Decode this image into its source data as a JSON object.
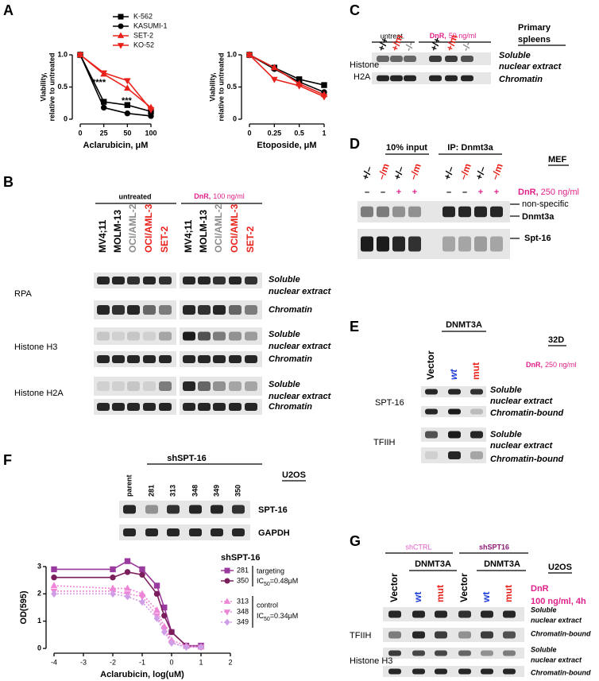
{
  "letters": [
    "A",
    "B",
    "C",
    "D",
    "E",
    "F",
    "G"
  ],
  "chart_data": [
    {
      "type": "line",
      "x_label": "Aclarubicin, μM",
      "y_label": [
        "Viability,",
        "relative to untreated"
      ],
      "categories": [
        "0",
        "25",
        "50",
        "100"
      ],
      "ylim": [
        0,
        1
      ],
      "yticks": [
        0,
        0.5,
        {
          "value": 1,
          "label": "1.0"
        }
      ],
      "annotations": [
        "****",
        "***"
      ],
      "series": [
        {
          "name": "K-562",
          "color": "#000000",
          "marker": "square",
          "values": [
            1,
            0.27,
            0.22,
            0.12
          ]
        },
        {
          "name": "KASUMI-1",
          "color": "#000000",
          "marker": "circle",
          "values": [
            1,
            0.18,
            0.09,
            0.05
          ]
        },
        {
          "name": "SET-2",
          "color": "#e8221b",
          "marker": "triangle",
          "values": [
            1,
            0.7,
            0.48,
            0.18
          ]
        },
        {
          "name": "KO-52",
          "color": "#e8221b",
          "marker": "triangle-down",
          "values": [
            1,
            0.72,
            0.6,
            0.15
          ]
        }
      ]
    },
    {
      "type": "line",
      "x_label": "Etoposide, μM",
      "y_label": [
        "Viability,",
        "relative to untreated"
      ],
      "categories": [
        "0",
        "0.25",
        "0.5",
        "1"
      ],
      "ylim": [
        0,
        1
      ],
      "yticks": [
        0,
        0.5,
        {
          "value": 1,
          "label": "1.0"
        }
      ],
      "series": [
        {
          "color": "#000000",
          "marker": "square",
          "values": [
            1,
            0.8,
            0.62,
            0.53
          ]
        },
        {
          "color": "#000000",
          "marker": "circle",
          "values": [
            1,
            0.78,
            0.58,
            0.42
          ]
        },
        {
          "color": "#e8221b",
          "marker": "triangle",
          "values": [
            1,
            0.8,
            0.55,
            0.38
          ]
        },
        {
          "color": "#e8221b",
          "marker": "triangle-down",
          "values": [
            1,
            0.62,
            0.52,
            0.35
          ]
        }
      ]
    },
    {
      "type": "line",
      "x_label": "Aclarubicin, log(uM)",
      "y_label": "OD(595)",
      "x": [
        -4,
        -2,
        -1.5,
        -1,
        -0.5,
        -0.25,
        0,
        0.5,
        1
      ],
      "xlim": [
        -4,
        2
      ],
      "xticks": [
        -4,
        -3,
        -2,
        -1,
        0,
        1,
        2
      ],
      "ylim": [
        0,
        3
      ],
      "yticks": [
        0,
        1,
        2,
        3
      ],
      "legend_title": "shSPT-16",
      "groups": [
        {
          "label": "targeting",
          "ic": "IC",
          "sub": "50",
          "value": "=0.48μM"
        },
        {
          "label": "control",
          "ic": "IC",
          "sub": "50",
          "value": "=0.34μM"
        }
      ],
      "series": [
        {
          "name": "281",
          "color": "#9b3a9e",
          "marker": "square",
          "line_style": "solid",
          "values": [
            2.9,
            2.9,
            3.2,
            2.9,
            2.3,
            1.5,
            0.6,
            0.1,
            0.1
          ]
        },
        {
          "name": "350",
          "color": "#7a1f5c",
          "marker": "circle",
          "line_style": "solid",
          "values": [
            2.6,
            2.6,
            2.8,
            2.7,
            2.0,
            1.2,
            0.6,
            0.1,
            0.05
          ]
        },
        {
          "name": "313",
          "color": "#ee86d8",
          "marker": "triangle",
          "line_style": "dotted",
          "values": [
            2.3,
            2.2,
            2.2,
            2.0,
            1.4,
            0.8,
            0.3,
            0.1,
            0.05
          ]
        },
        {
          "name": "348",
          "color": "#ee86d8",
          "marker": "triangle-down",
          "line_style": "dotted",
          "values": [
            2.1,
            2.1,
            2.0,
            1.9,
            1.2,
            0.7,
            0.2,
            0.05,
            0.05
          ]
        },
        {
          "name": "349",
          "color": "#cf9ee6",
          "marker": "diamond",
          "line_style": "dotted",
          "values": [
            2.0,
            2.0,
            1.9,
            1.7,
            1.1,
            0.6,
            0.2,
            0.05,
            0.05
          ]
        }
      ]
    }
  ],
  "panel_b": {
    "untreated": "untreated",
    "dnr": "DnR,",
    "dose": "100 ng/ml",
    "lanes": [
      "MV4;11",
      "MOLM-13",
      "OCI/AML-2",
      "OCI/AML-3",
      "SET-2"
    ],
    "proteins": [
      "RPA",
      "Histone H3",
      "Histone H2A"
    ],
    "soluble": [
      "Soluble",
      "nuclear extract"
    ],
    "chromatin": "Chromatin"
  },
  "panel_c": {
    "untreated": "untreat.",
    "dnr": "DnR,",
    "dose": "50 ng/ml",
    "genotypes": [
      "+/+",
      "+/m",
      "-/-"
    ],
    "source": [
      "Primary",
      "spleens"
    ],
    "protein": [
      "Histone",
      "H2A"
    ],
    "soluble": [
      "Soluble",
      "nuclear extract"
    ],
    "chromatin": "Chromatin"
  },
  "panel_d": {
    "input": "10% input",
    "ip": "IP: Dnmt3a",
    "cell": "MEF",
    "genotypes": [
      "+/–",
      "–/m",
      "+/–",
      "–/m"
    ],
    "treatment": [
      "–",
      "–",
      "+",
      "+"
    ],
    "dnr": "DnR,",
    "dose": "250 ng/ml",
    "bands": [
      "non-specific",
      "Dnmt3a",
      "Spt-16"
    ]
  },
  "panel_e": {
    "construct": "DNMT3A",
    "cell": "32D",
    "lanes": [
      "Vector",
      "wt",
      "mut"
    ],
    "dnr": "DnR,",
    "dose": "250 ng/ml",
    "proteins": [
      "SPT-16",
      "TFIIH"
    ],
    "soluble": [
      "Soluble",
      "nuclear extract"
    ],
    "chromatin": "Chromatin-bound"
  },
  "panel_f": {
    "group": "shSPT-16",
    "cell": "U2OS",
    "lanes": [
      "parent",
      "281",
      "313",
      "348",
      "349",
      "350"
    ],
    "proteins": [
      "SPT-16",
      "GAPDH"
    ]
  },
  "panel_g": {
    "groups": [
      "shCTRL",
      "shSPT16"
    ],
    "construct": "DNMT3A",
    "cell": "U2OS",
    "lanes": [
      "Vector",
      "wt",
      "mut"
    ],
    "dnr": "DnR",
    "dose": "100 ng/ml, 4h",
    "proteins": [
      "TFIIH",
      "Histone H3"
    ],
    "soluble": [
      "Soluble",
      "nuclear extract"
    ],
    "chromatin": "Chromatin-bound"
  }
}
